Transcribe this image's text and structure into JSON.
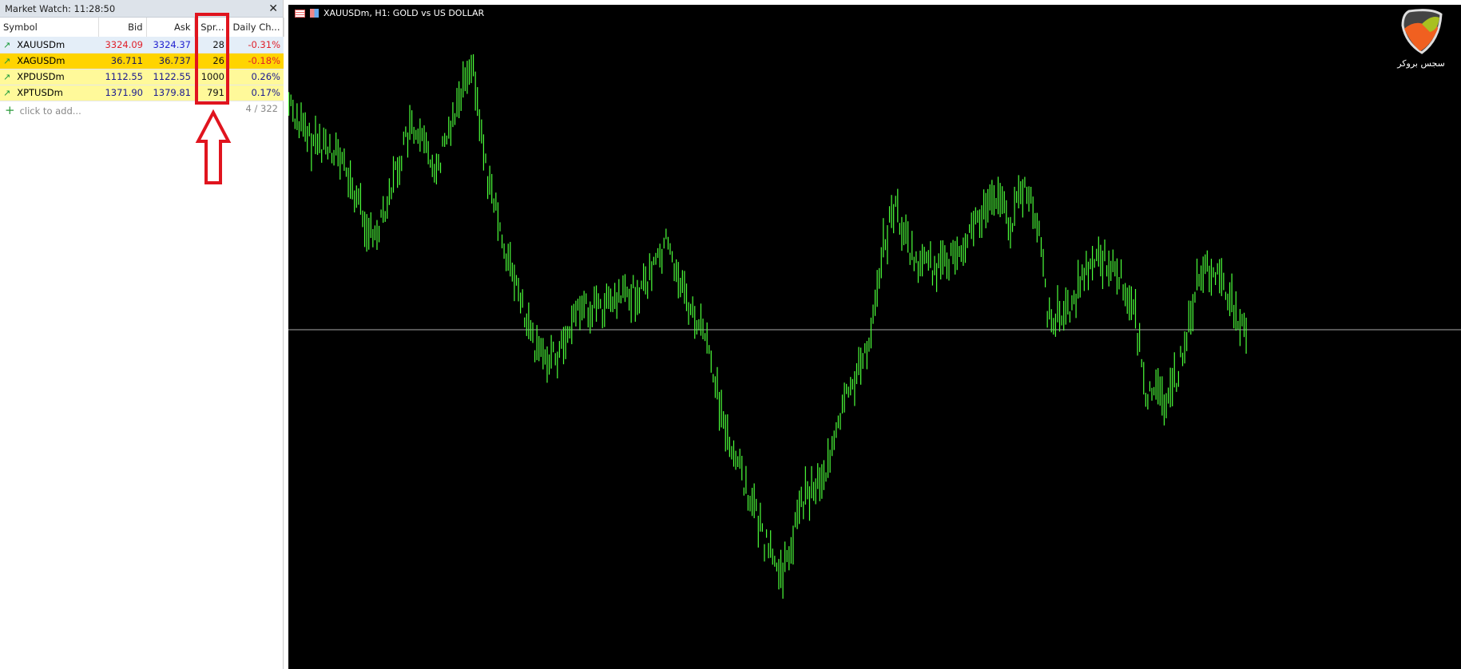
{
  "market_watch": {
    "title": "Market Watch: 11:28:50",
    "columns": [
      "Symbol",
      "Bid",
      "Ask",
      "Spr...",
      "Daily Ch..."
    ],
    "rows": [
      {
        "symbol": "XAUUSDm",
        "bid": "3324.09",
        "ask": "3324.37",
        "spread": "28",
        "change": "-0.31%",
        "bg": "#e4eef8",
        "bid_color": "#e0202a",
        "ask_color": "#2020d0",
        "change_color": "#e0202a"
      },
      {
        "symbol": "XAGUSDm",
        "bid": "36.711",
        "ask": "36.737",
        "spread": "26",
        "change": "-0.18%",
        "bg": "#ffd400",
        "bid_color": "#1a1a60",
        "ask_color": "#1a1a60",
        "change_color": "#e0202a"
      },
      {
        "symbol": "XPDUSDm",
        "bid": "1112.55",
        "ask": "1122.55",
        "spread": "1000",
        "change": "0.26%",
        "bg": "#fff99a",
        "bid_color": "#1a1a90",
        "ask_color": "#1a1a90",
        "change_color": "#1a1a90"
      },
      {
        "symbol": "XPTUSDm",
        "bid": "1371.90",
        "ask": "1379.81",
        "spread": "791",
        "change": "0.17%",
        "bg": "#fff99a",
        "bid_color": "#1a1a90",
        "ask_color": "#1a1a90",
        "change_color": "#1a1a90"
      }
    ],
    "add_label": "click to add...",
    "count": "4 / 322"
  },
  "chart": {
    "title": "XAUUSDm, H1:  GOLD vs US DOLLAR",
    "bar_color": "#4cff3a",
    "logo_text": "سجس بروکر"
  },
  "annotation": {
    "color": "#e0141e"
  }
}
